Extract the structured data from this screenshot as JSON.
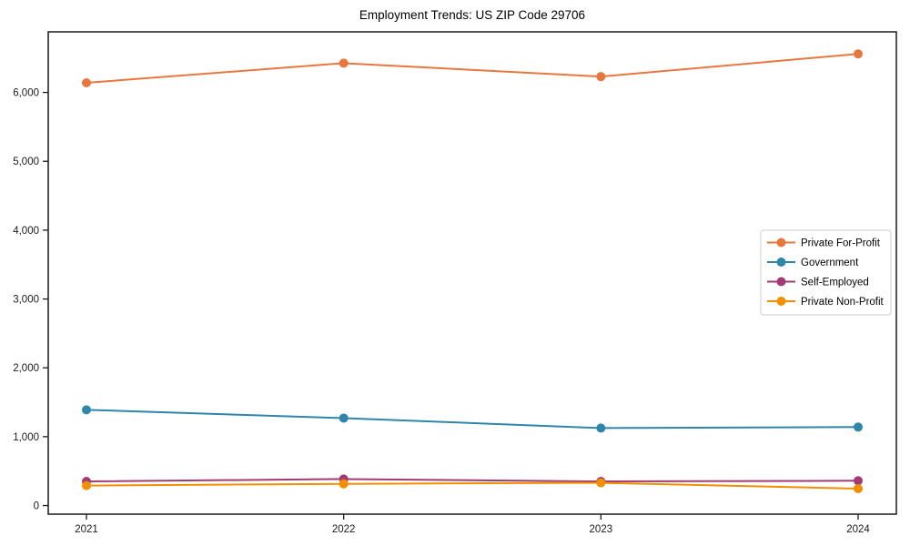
{
  "chart_data": {
    "type": "line",
    "title": "Employment Trends: US ZIP Code 29706",
    "x": [
      "2021",
      "2022",
      "2023",
      "2024"
    ],
    "series": [
      {
        "name": "Private For-Profit",
        "color": "#E8773D",
        "values": [
          6140,
          6425,
          6230,
          6560
        ]
      },
      {
        "name": "Government",
        "color": "#2E86AB",
        "values": [
          1390,
          1270,
          1125,
          1140
        ]
      },
      {
        "name": "Self-Employed",
        "color": "#A23B72",
        "values": [
          350,
          385,
          350,
          360
        ]
      },
      {
        "name": "Private Non-Profit",
        "color": "#F18F01",
        "values": [
          290,
          315,
          330,
          245
        ]
      }
    ],
    "xlabel": "",
    "ylabel": "",
    "ylim": [
      -125,
      6880
    ],
    "yticks": [
      0,
      1000,
      2000,
      3000,
      4000,
      5000,
      6000
    ],
    "ytick_labels": [
      "0",
      "1,000",
      "2,000",
      "3,000",
      "4,000",
      "5,000",
      "6,000"
    ],
    "grid": false,
    "legend_position": "center right",
    "marker": "circle"
  },
  "style": {
    "axis_color": "#1a1a1a",
    "tick_label_color": "#1a1a1a",
    "legend_border_color": "#cccccc",
    "legend_background": "#ffffff",
    "background": "#ffffff"
  }
}
